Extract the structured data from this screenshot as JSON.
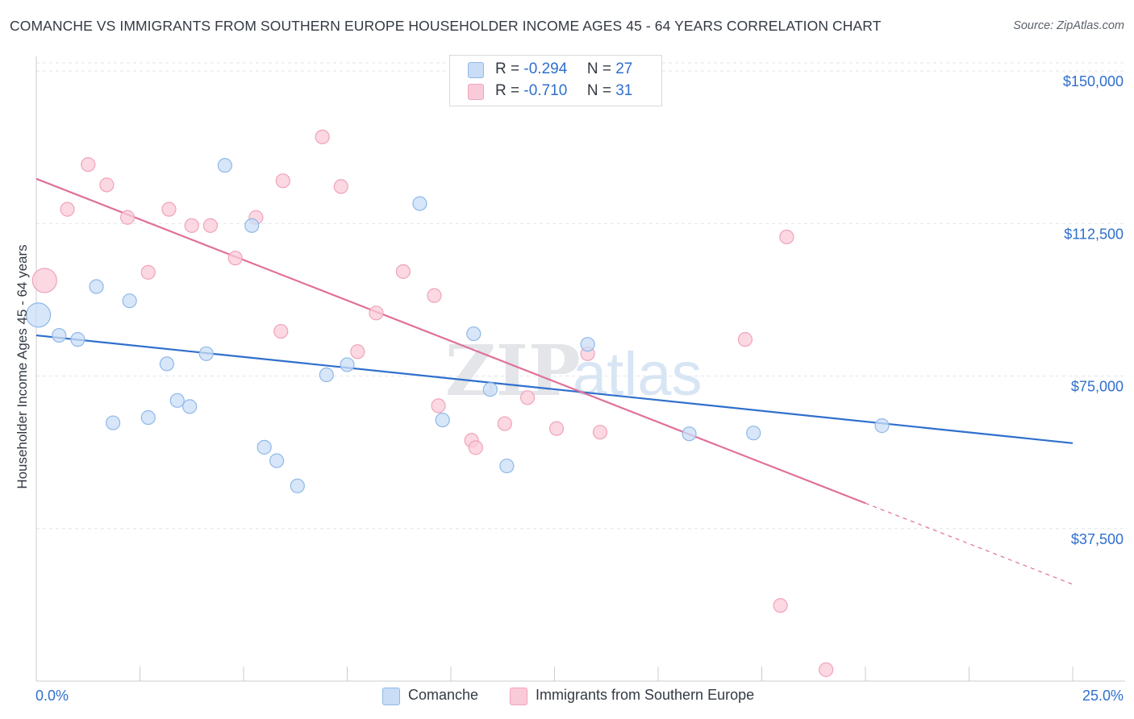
{
  "title": "COMANCHE VS IMMIGRANTS FROM SOUTHERN EUROPE HOUSEHOLDER INCOME AGES 45 - 64 YEARS CORRELATION CHART",
  "source": "Source: ZipAtlas.com",
  "watermark": {
    "zip": "ZIP",
    "atlas": "atlas"
  },
  "legend_top": [
    {
      "r_label": "R =",
      "r_value": "-0.294",
      "n_label": "N =",
      "n_value": "27"
    },
    {
      "r_label": "R =",
      "r_value": "-0.710",
      "n_label": "N =",
      "n_value": "31"
    }
  ],
  "chart_data": {
    "type": "scatter",
    "title": "COMANCHE VS IMMIGRANTS FROM SOUTHERN EUROPE HOUSEHOLDER INCOME AGES 45 - 64 YEARS CORRELATION CHART",
    "xlabel": "",
    "ylabel": "Householder Income Ages 45 - 64 years",
    "xlim": [
      0,
      25
    ],
    "ylim": [
      0,
      152000
    ],
    "x_tick_labels": [
      "0.0%",
      "25.0%"
    ],
    "y_ticks": [
      37500,
      75000,
      112500,
      150000
    ],
    "y_tick_labels": [
      "$37,500",
      "$75,000",
      "$112,500",
      "$150,000"
    ],
    "grid": "horizontal dashed",
    "legend_position": "top-center and bottom",
    "series": [
      {
        "name": "Comanche",
        "color": "#8fb8ea",
        "fill": "#c9ddf6",
        "r": -0.294,
        "n": 27,
        "trend": {
          "x": [
            0,
            25
          ],
          "y": [
            85000,
            58500
          ]
        },
        "points": [
          {
            "x": 0.05,
            "y": 90000,
            "big": true
          },
          {
            "x": 0.55,
            "y": 85000
          },
          {
            "x": 1.0,
            "y": 84000
          },
          {
            "x": 1.45,
            "y": 97000
          },
          {
            "x": 1.85,
            "y": 63500
          },
          {
            "x": 2.25,
            "y": 93500
          },
          {
            "x": 2.7,
            "y": 64800
          },
          {
            "x": 3.15,
            "y": 78000
          },
          {
            "x": 3.4,
            "y": 69000
          },
          {
            "x": 3.7,
            "y": 67500
          },
          {
            "x": 4.1,
            "y": 80500
          },
          {
            "x": 4.55,
            "y": 126800
          },
          {
            "x": 5.2,
            "y": 112000
          },
          {
            "x": 5.5,
            "y": 57500
          },
          {
            "x": 5.8,
            "y": 54200
          },
          {
            "x": 6.3,
            "y": 48000
          },
          {
            "x": 7.0,
            "y": 75300
          },
          {
            "x": 7.5,
            "y": 77800
          },
          {
            "x": 9.25,
            "y": 117400
          },
          {
            "x": 9.8,
            "y": 64200
          },
          {
            "x": 10.55,
            "y": 85400
          },
          {
            "x": 10.95,
            "y": 71700
          },
          {
            "x": 11.35,
            "y": 52900
          },
          {
            "x": 13.3,
            "y": 82800
          },
          {
            "x": 15.75,
            "y": 60800
          },
          {
            "x": 17.3,
            "y": 61000
          },
          {
            "x": 20.4,
            "y": 62800
          }
        ]
      },
      {
        "name": "Immigrants from Southern Europe",
        "color": "#f0a3b9",
        "fill": "#f9cbd8",
        "r": -0.71,
        "n": 31,
        "trend": {
          "x": [
            0,
            25
          ],
          "y": [
            123500,
            23800
          ]
        },
        "trend_solid_end_x": 20.0,
        "points": [
          {
            "x": 0.2,
            "y": 98500,
            "big": true
          },
          {
            "x": 0.75,
            "y": 116000
          },
          {
            "x": 1.25,
            "y": 127000
          },
          {
            "x": 1.7,
            "y": 122000
          },
          {
            "x": 2.2,
            "y": 114000
          },
          {
            "x": 2.7,
            "y": 100500
          },
          {
            "x": 3.2,
            "y": 116000
          },
          {
            "x": 3.75,
            "y": 112000
          },
          {
            "x": 4.2,
            "y": 112000
          },
          {
            "x": 4.8,
            "y": 104000
          },
          {
            "x": 5.3,
            "y": 114000
          },
          {
            "x": 5.9,
            "y": 86000
          },
          {
            "x": 5.95,
            "y": 123000
          },
          {
            "x": 6.9,
            "y": 133800
          },
          {
            "x": 7.35,
            "y": 121600
          },
          {
            "x": 7.75,
            "y": 81000
          },
          {
            "x": 8.2,
            "y": 90500
          },
          {
            "x": 8.85,
            "y": 100700
          },
          {
            "x": 9.6,
            "y": 94800
          },
          {
            "x": 9.7,
            "y": 67700
          },
          {
            "x": 10.5,
            "y": 59200
          },
          {
            "x": 10.6,
            "y": 57400
          },
          {
            "x": 11.3,
            "y": 63300
          },
          {
            "x": 11.85,
            "y": 69700
          },
          {
            "x": 12.55,
            "y": 62100
          },
          {
            "x": 13.3,
            "y": 80500
          },
          {
            "x": 13.6,
            "y": 61200
          },
          {
            "x": 17.1,
            "y": 84000
          },
          {
            "x": 18.1,
            "y": 109200
          },
          {
            "x": 17.95,
            "y": 18600
          },
          {
            "x": 19.05,
            "y": 2800
          }
        ]
      }
    ]
  }
}
